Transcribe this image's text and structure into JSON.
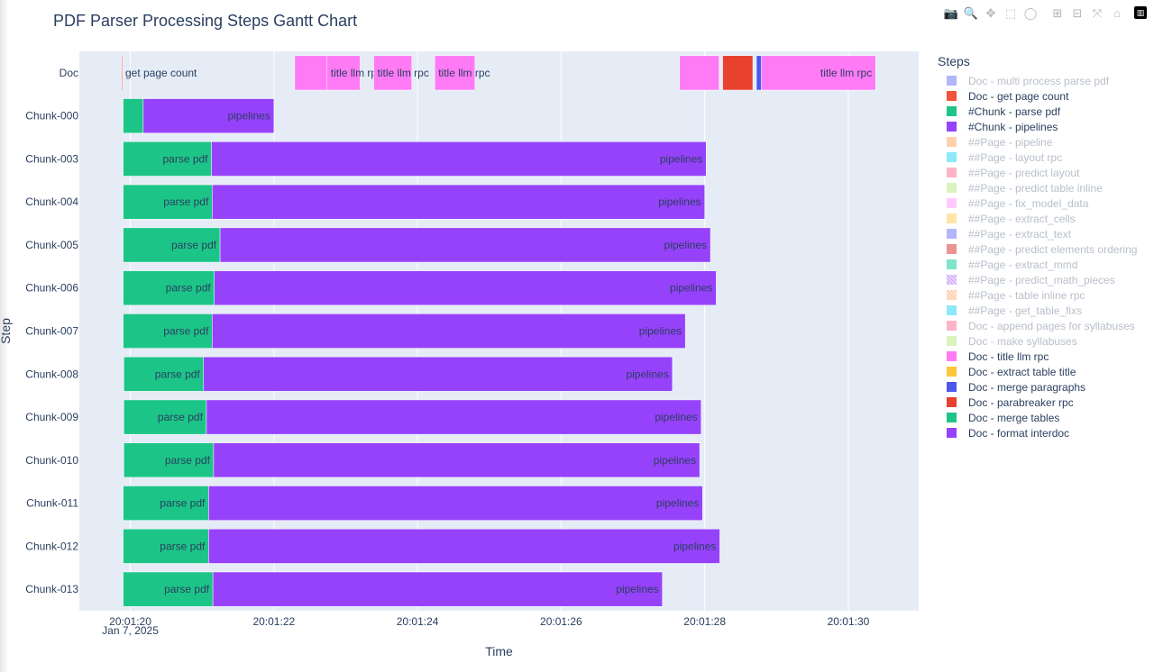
{
  "chart_data": {
    "type": "gantt",
    "title": "PDF Parser Processing Steps Gantt Chart",
    "xlabel": "Time",
    "ylabel": "Step",
    "x_date_label": "Jan 7, 2025",
    "x_range_seconds": [
      19.29,
      30.98
    ],
    "x_ticks": [
      {
        "s": 20,
        "label": "20:01:20"
      },
      {
        "s": 22,
        "label": "20:01:22"
      },
      {
        "s": 24,
        "label": "20:01:24"
      },
      {
        "s": 26,
        "label": "20:01:26"
      },
      {
        "s": 28,
        "label": "20:01:28"
      },
      {
        "s": 30,
        "label": "20:01:30"
      }
    ],
    "rows": [
      "Doc",
      "Chunk-000",
      "Chunk-003",
      "Chunk-004",
      "Chunk-005",
      "Chunk-006",
      "Chunk-007",
      "Chunk-008",
      "Chunk-009",
      "Chunk-010",
      "Chunk-011",
      "Chunk-012",
      "Chunk-013"
    ],
    "tasks": [
      {
        "row": "Doc",
        "step": "Doc - get page count",
        "start": 19.88,
        "end": 19.89,
        "label": "get page count"
      },
      {
        "row": "Doc",
        "step": "Doc - title llm rpc",
        "start": 22.29,
        "end": 22.74,
        "label": ""
      },
      {
        "row": "Doc",
        "step": "Doc - title llm rpc",
        "start": 22.74,
        "end": 23.2,
        "label": "title llm rpc"
      },
      {
        "row": "Doc",
        "step": "Doc - title llm rpc",
        "start": 23.39,
        "end": 23.92,
        "label": "title llm rpc"
      },
      {
        "row": "Doc",
        "step": "Doc - title llm rpc",
        "start": 24.24,
        "end": 24.8,
        "label": "title llm rpc"
      },
      {
        "row": "Doc",
        "step": "Doc - title llm rpc",
        "start": 27.65,
        "end": 28.2,
        "label": ""
      },
      {
        "row": "Doc",
        "step": "Doc - parabreaker rpc",
        "start": 28.25,
        "end": 28.67,
        "label": ""
      },
      {
        "row": "Doc",
        "step": "Doc - merge paragraphs",
        "start": 28.72,
        "end": 28.79,
        "label": ""
      },
      {
        "row": "Doc",
        "step": "Doc - title llm rpc",
        "start": 28.79,
        "end": 30.38,
        "label": "title llm rpc"
      },
      {
        "row": "Chunk-000",
        "step": "#Chunk - parse pdf",
        "start": 19.9,
        "end": 20.18,
        "label": ""
      },
      {
        "row": "Chunk-000",
        "step": "#Chunk - pipelines",
        "start": 20.18,
        "end": 22.0,
        "label": "pipelines"
      },
      {
        "row": "Chunk-003",
        "step": "#Chunk - parse pdf",
        "start": 19.9,
        "end": 21.13,
        "label": "parse pdf"
      },
      {
        "row": "Chunk-003",
        "step": "#Chunk - pipelines",
        "start": 21.13,
        "end": 28.02,
        "label": "pipelines"
      },
      {
        "row": "Chunk-004",
        "step": "#Chunk - parse pdf",
        "start": 19.9,
        "end": 21.14,
        "label": "parse pdf"
      },
      {
        "row": "Chunk-004",
        "step": "#Chunk - pipelines",
        "start": 21.14,
        "end": 28.0,
        "label": "pipelines"
      },
      {
        "row": "Chunk-005",
        "step": "#Chunk - parse pdf",
        "start": 19.9,
        "end": 21.25,
        "label": "parse pdf"
      },
      {
        "row": "Chunk-005",
        "step": "#Chunk - pipelines",
        "start": 21.25,
        "end": 28.08,
        "label": "pipelines"
      },
      {
        "row": "Chunk-006",
        "step": "#Chunk - parse pdf",
        "start": 19.9,
        "end": 21.17,
        "label": "parse pdf"
      },
      {
        "row": "Chunk-006",
        "step": "#Chunk - pipelines",
        "start": 21.17,
        "end": 28.16,
        "label": "pipelines"
      },
      {
        "row": "Chunk-007",
        "step": "#Chunk - parse pdf",
        "start": 19.9,
        "end": 21.14,
        "label": "parse pdf"
      },
      {
        "row": "Chunk-007",
        "step": "#Chunk - pipelines",
        "start": 21.14,
        "end": 27.73,
        "label": "pipelines"
      },
      {
        "row": "Chunk-008",
        "step": "#Chunk - parse pdf",
        "start": 19.91,
        "end": 21.02,
        "label": "parse pdf"
      },
      {
        "row": "Chunk-008",
        "step": "#Chunk - pipelines",
        "start": 21.02,
        "end": 27.55,
        "label": "pipelines"
      },
      {
        "row": "Chunk-009",
        "step": "#Chunk - parse pdf",
        "start": 19.91,
        "end": 21.06,
        "label": "parse pdf"
      },
      {
        "row": "Chunk-009",
        "step": "#Chunk - pipelines",
        "start": 21.06,
        "end": 27.95,
        "label": "pipelines"
      },
      {
        "row": "Chunk-010",
        "step": "#Chunk - parse pdf",
        "start": 19.91,
        "end": 21.16,
        "label": "parse pdf"
      },
      {
        "row": "Chunk-010",
        "step": "#Chunk - pipelines",
        "start": 21.16,
        "end": 27.93,
        "label": "pipelines"
      },
      {
        "row": "Chunk-011",
        "step": "#Chunk - parse pdf",
        "start": 19.9,
        "end": 21.09,
        "label": "parse pdf"
      },
      {
        "row": "Chunk-011",
        "step": "#Chunk - pipelines",
        "start": 21.09,
        "end": 27.97,
        "label": "pipelines"
      },
      {
        "row": "Chunk-012",
        "step": "#Chunk - parse pdf",
        "start": 19.9,
        "end": 21.09,
        "label": "parse pdf"
      },
      {
        "row": "Chunk-012",
        "step": "#Chunk - pipelines",
        "start": 21.09,
        "end": 28.21,
        "label": "pipelines"
      },
      {
        "row": "Chunk-013",
        "step": "#Chunk - parse pdf",
        "start": 19.9,
        "end": 21.15,
        "label": "parse pdf"
      },
      {
        "row": "Chunk-013",
        "step": "#Chunk - pipelines",
        "start": 21.15,
        "end": 27.41,
        "label": "pipelines"
      }
    ],
    "legend": {
      "title": "Steps",
      "placement": "right",
      "items": [
        {
          "label": "Doc - multi process parse pdf",
          "color": "#636efa",
          "on": false,
          "hatched": false
        },
        {
          "label": "Doc - get page count",
          "color": "#ef553b",
          "on": true,
          "hatched": false
        },
        {
          "label": "#Chunk - parse pdf",
          "color": "#1cc587",
          "on": true,
          "hatched": false
        },
        {
          "label": "#Chunk - pipelines",
          "color": "#9642fb",
          "on": true,
          "hatched": false
        },
        {
          "label": "##Page - pipeline",
          "color": "#ffa15a",
          "on": false,
          "hatched": false
        },
        {
          "label": "##Page - layout rpc",
          "color": "#19d3f3",
          "on": false,
          "hatched": false
        },
        {
          "label": "##Page - predict layout",
          "color": "#ff6692",
          "on": false,
          "hatched": false
        },
        {
          "label": "##Page - predict table inline",
          "color": "#b6e880",
          "on": false,
          "hatched": false
        },
        {
          "label": "##Page - fix_model_data",
          "color": "#ff97ff",
          "on": false,
          "hatched": false
        },
        {
          "label": "##Page - extract_cells",
          "color": "#fecb52",
          "on": false,
          "hatched": false
        },
        {
          "label": "##Page - extract_text",
          "color": "#636efa",
          "on": false,
          "hatched": false
        },
        {
          "label": "##Page - predict elements ordering",
          "color": "#d62728",
          "on": false,
          "hatched": false
        },
        {
          "label": "##Page - extract_mmd",
          "color": "#00cc96",
          "on": false,
          "hatched": false
        },
        {
          "label": "##Page - predict_math_pieces",
          "color": "#ab63fa",
          "on": false,
          "hatched": true
        },
        {
          "label": "##Page - table inline rpc",
          "color": "#ffa15a",
          "on": false,
          "hatched": true
        },
        {
          "label": "##Page - get_table_fixs",
          "color": "#19d3f3",
          "on": false,
          "hatched": false
        },
        {
          "label": "Doc - append pages for syllabuses",
          "color": "#ff6692",
          "on": false,
          "hatched": false
        },
        {
          "label": "Doc - make syllabuses",
          "color": "#b6e880",
          "on": false,
          "hatched": false
        },
        {
          "label": "Doc - title llm rpc",
          "color": "#ff7bf6",
          "on": true,
          "hatched": false
        },
        {
          "label": "Doc - extract table title",
          "color": "#fec63a",
          "on": true,
          "hatched": false
        },
        {
          "label": "Doc - merge paragraphs",
          "color": "#4e56ee",
          "on": true,
          "hatched": false
        },
        {
          "label": "Doc - parabreaker rpc",
          "color": "#e8412e",
          "on": true,
          "hatched": false
        },
        {
          "label": "Doc - merge tables",
          "color": "#1cc587",
          "on": true,
          "hatched": false
        },
        {
          "label": "Doc - format interdoc",
          "color": "#9642fb",
          "on": true,
          "hatched": false
        }
      ]
    }
  },
  "modebar": {
    "buttons": [
      {
        "name": "camera-icon",
        "glyph": "📷"
      },
      {
        "name": "zoom-icon",
        "glyph": "🔍"
      },
      {
        "name": "pan-icon",
        "glyph": "✥"
      },
      {
        "name": "box-select-icon",
        "glyph": "⬚"
      },
      {
        "name": "lasso-select-icon",
        "glyph": "◯"
      },
      {
        "name": "zoom-in-icon",
        "glyph": "⊞"
      },
      {
        "name": "zoom-out-icon",
        "glyph": "⊟"
      },
      {
        "name": "autoscale-icon",
        "glyph": "⤧"
      },
      {
        "name": "reset-axes-icon",
        "glyph": "⌂"
      }
    ]
  }
}
